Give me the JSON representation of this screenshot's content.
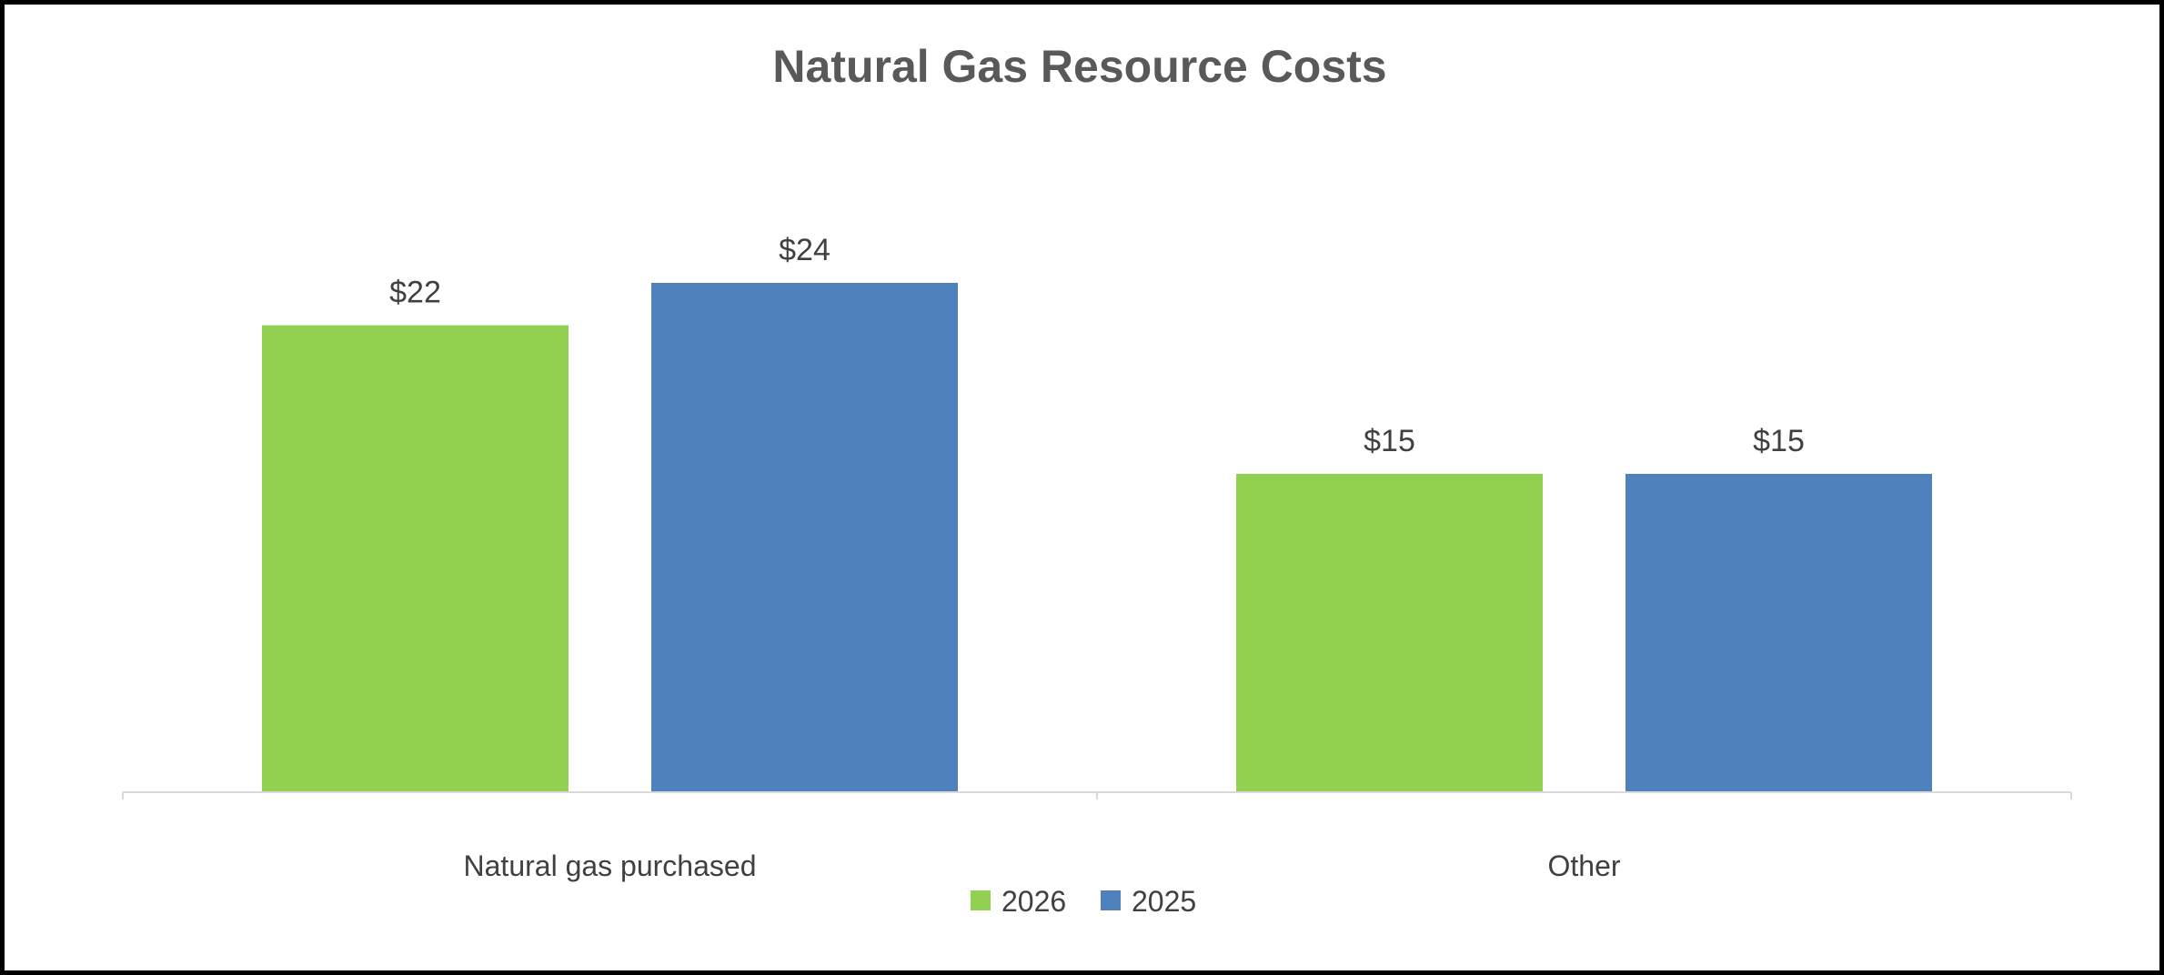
{
  "chart_data": {
    "type": "bar",
    "title": "Natural Gas Resource Costs",
    "categories": [
      "Natural gas purchased",
      "Other"
    ],
    "series": [
      {
        "name": "2026",
        "values": [
          22,
          15
        ],
        "labels": [
          "$22",
          "$15"
        ],
        "color": "#92d050"
      },
      {
        "name": "2025",
        "values": [
          24,
          15
        ],
        "labels": [
          "$24",
          "$15"
        ],
        "color": "#4f81bd"
      }
    ],
    "ylim": [
      0,
      30
    ],
    "grid": false,
    "legend": "bottom",
    "value_format": "currency"
  }
}
